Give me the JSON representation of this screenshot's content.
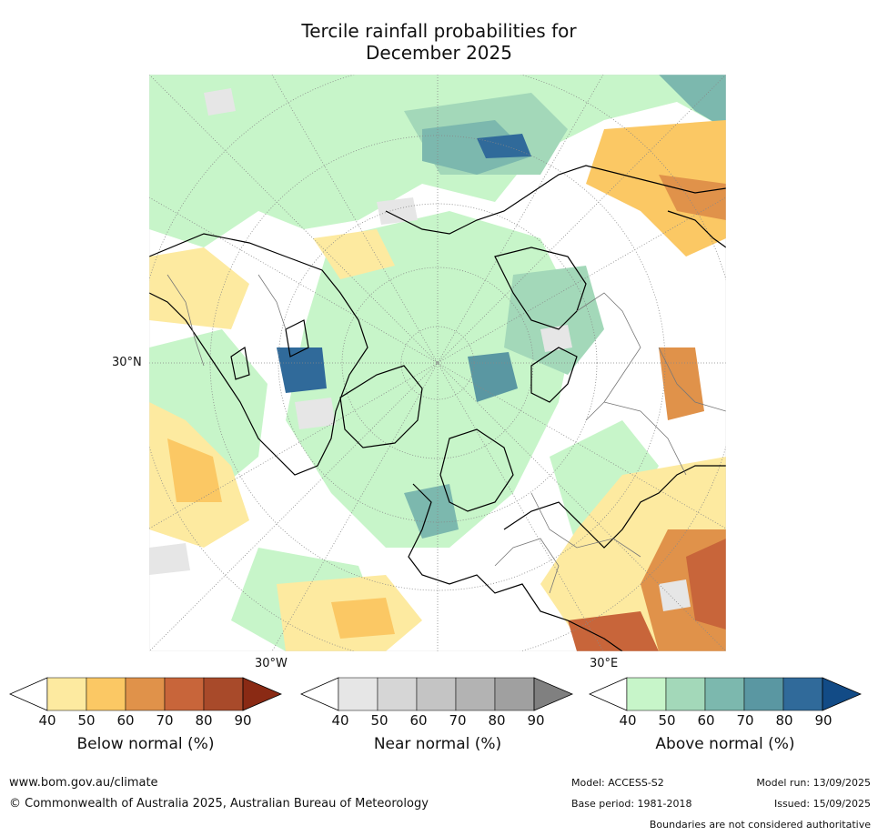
{
  "title": {
    "line1": "Tercile rainfall probabilities for",
    "line2": "December 2025"
  },
  "map": {
    "lat_label": "30°N",
    "lon_labels": {
      "west": "30°W",
      "east": "30°E"
    }
  },
  "legends": [
    {
      "id": "below",
      "title": "Below normal (%)",
      "ticks": [
        "40",
        "50",
        "60",
        "70",
        "80",
        "90"
      ],
      "colors": [
        "#ffffff",
        "#fdeaa0",
        "#fbc864",
        "#e0924a",
        "#c8653a",
        "#a84a2a",
        "#8a2a14"
      ]
    },
    {
      "id": "near",
      "title": "Near normal (%)",
      "ticks": [
        "40",
        "50",
        "60",
        "70",
        "80",
        "90"
      ],
      "colors": [
        "#ffffff",
        "#e6e6e6",
        "#d6d6d6",
        "#c4c4c4",
        "#b3b3b3",
        "#a0a0a0",
        "#808080"
      ]
    },
    {
      "id": "above",
      "title": "Above normal (%)",
      "ticks": [
        "40",
        "50",
        "60",
        "70",
        "80",
        "90"
      ],
      "colors": [
        "#ffffff",
        "#c7f5c9",
        "#a3d8b9",
        "#7cb8ae",
        "#5a97a2",
        "#306a9a",
        "#124b86"
      ]
    }
  ],
  "footer": {
    "url": "www.bom.gov.au/climate",
    "copyright": "© Commonwealth of Australia 2025, Australian Bureau of Meteorology",
    "model": "Model: ACCESS-S2",
    "model_run": "Model run: 13/09/2025",
    "base_period": "Base period: 1981-2018",
    "issued": "Issued: 15/09/2025",
    "disclaimer": "Boundaries are not considered authoritative"
  }
}
